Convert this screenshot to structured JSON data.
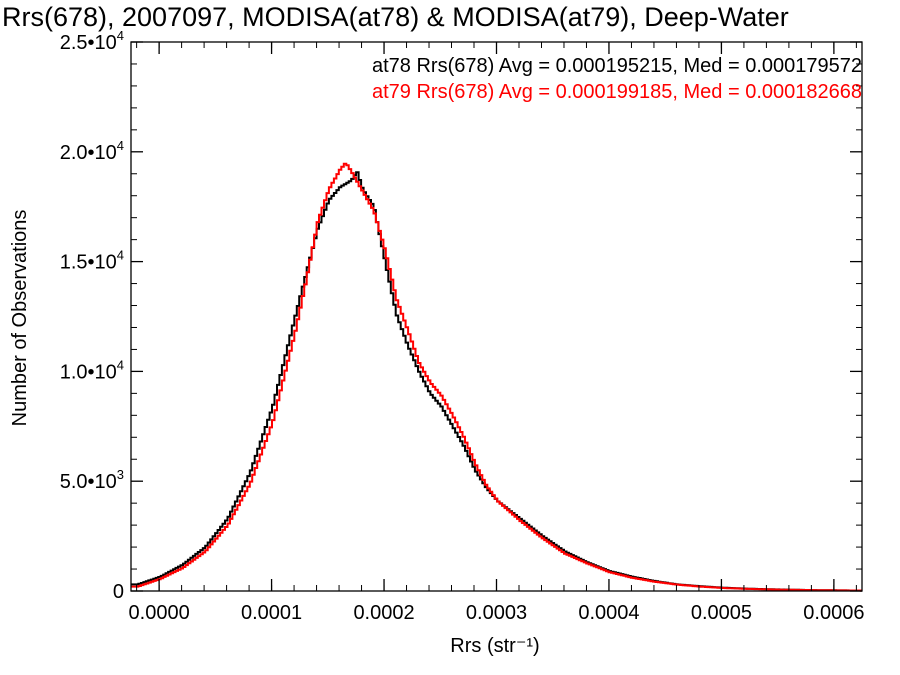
{
  "chart_data": {
    "type": "line",
    "title": "Rrs(678), 2007097, MODISA(at78) & MODISA(at79), Deep-Water",
    "xlabel": "Rrs (str⁻¹)",
    "ylabel": "Number of Observations",
    "xlim": [
      -2.5e-05,
      0.000625
    ],
    "ylim": [
      0,
      25000
    ],
    "x_ticks": [
      {
        "value": 0.0,
        "label": "0.0000"
      },
      {
        "value": 0.0001,
        "label": "0.0001"
      },
      {
        "value": 0.0002,
        "label": "0.0002"
      },
      {
        "value": 0.0003,
        "label": "0.0003"
      },
      {
        "value": 0.0004,
        "label": "0.0004"
      },
      {
        "value": 0.0005,
        "label": "0.0005"
      },
      {
        "value": 0.0006,
        "label": "0.0006"
      }
    ],
    "y_ticks": [
      {
        "value": 0,
        "mant": "0",
        "exp": ""
      },
      {
        "value": 5000,
        "mant": "5.0•10",
        "exp": "3"
      },
      {
        "value": 10000,
        "mant": "1.0•10",
        "exp": "4"
      },
      {
        "value": 15000,
        "mant": "1.5•10",
        "exp": "4"
      },
      {
        "value": 20000,
        "mant": "2.0•10",
        "exp": "4"
      },
      {
        "value": 25000,
        "mant": "2.5•10",
        "exp": "4"
      }
    ],
    "grid": false,
    "legend_position": "top-right",
    "series": [
      {
        "name": "at78",
        "color": "#000000",
        "stats_text": "at78 Rrs(678) Avg = 0.000195215, Med = 0.000179572",
        "x": [
          -2e-05,
          0.0,
          2e-05,
          4e-05,
          6e-05,
          8e-05,
          0.0001,
          0.00012,
          0.00013,
          0.00014,
          0.00015,
          0.00016,
          0.00017,
          0.000175,
          0.00018,
          0.00019,
          0.0002,
          0.00021,
          0.00022,
          0.00023,
          0.00024,
          0.00025,
          0.00026,
          0.00027,
          0.00028,
          0.00029,
          0.0003,
          0.00032,
          0.00034,
          0.00036,
          0.00038,
          0.0004,
          0.00042,
          0.00044,
          0.00046,
          0.00048,
          0.0005,
          0.00052,
          0.00054,
          0.00056,
          0.00058,
          0.0006,
          0.000625
        ],
        "y": [
          300,
          650,
          1200,
          2000,
          3300,
          5400,
          8400,
          12500,
          14500,
          16500,
          17800,
          18400,
          18700,
          19100,
          18300,
          17500,
          15000,
          12600,
          11200,
          10000,
          9000,
          8400,
          7500,
          6600,
          5500,
          4700,
          4100,
          3300,
          2500,
          1800,
          1300,
          900,
          650,
          450,
          300,
          220,
          150,
          110,
          80,
          60,
          40,
          30,
          20
        ]
      },
      {
        "name": "at79",
        "color": "#ff0000",
        "stats_text": "at79 Rrs(678) Avg = 0.000199185, Med = 0.000182668",
        "x": [
          -2e-05,
          0.0,
          2e-05,
          4e-05,
          6e-05,
          8e-05,
          0.0001,
          0.00012,
          0.00013,
          0.00014,
          0.00015,
          0.00016,
          0.000165,
          0.00017,
          0.00018,
          0.00019,
          0.0002,
          0.00021,
          0.00022,
          0.00023,
          0.00024,
          0.00025,
          0.00026,
          0.00027,
          0.00028,
          0.00029,
          0.0003,
          0.00032,
          0.00034,
          0.00036,
          0.00038,
          0.0004,
          0.00042,
          0.00044,
          0.00046,
          0.00048,
          0.0005,
          0.00052,
          0.00054,
          0.00056,
          0.00058,
          0.0006,
          0.000625
        ],
        "y": [
          200,
          550,
          1050,
          1800,
          3000,
          4900,
          7700,
          11800,
          14200,
          16800,
          18300,
          19200,
          19500,
          19100,
          18200,
          17300,
          15500,
          13300,
          11900,
          10400,
          9500,
          8900,
          8000,
          7000,
          5800,
          4800,
          4100,
          3200,
          2400,
          1700,
          1250,
          850,
          600,
          420,
          290,
          200,
          140,
          100,
          75,
          55,
          40,
          28,
          20
        ]
      }
    ]
  }
}
